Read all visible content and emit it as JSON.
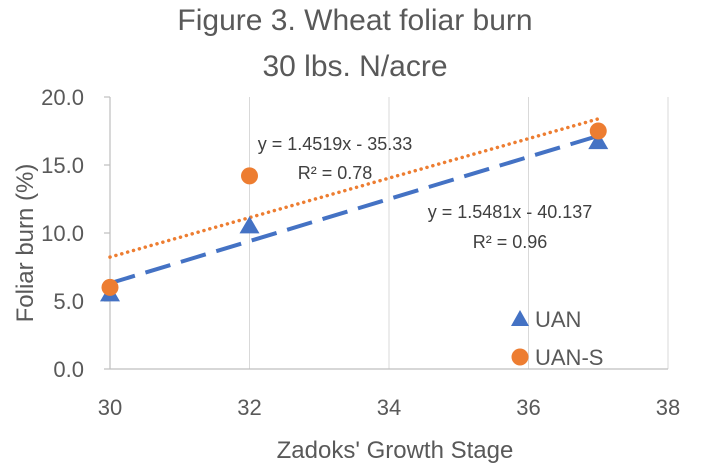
{
  "chart_data": {
    "type": "scatter",
    "title": [
      "Figure 3. Wheat foliar burn",
      "30 lbs. N/acre"
    ],
    "xlabel": "Zadoks' Growth Stage",
    "ylabel": "Foliar burn (%)",
    "xlim": [
      30,
      38
    ],
    "ylim": [
      0,
      20
    ],
    "x_ticks": [
      30,
      32,
      34,
      36,
      38
    ],
    "y_ticks": [
      0,
      5,
      10,
      15,
      20
    ],
    "x_tick_labels": [
      "30",
      "32",
      "34",
      "36",
      "38"
    ],
    "y_tick_labels": [
      "0.0",
      "5.0",
      "10.0",
      "15.0",
      "20.0"
    ],
    "grid": {
      "horizontal": false,
      "vertical": true
    },
    "legend_position": "bottom-right",
    "series": [
      {
        "name": "UAN",
        "marker": "triangle",
        "color": "#4472C4",
        "x": [
          30,
          32,
          37
        ],
        "y": [
          5.5,
          10.5,
          16.7
        ],
        "trendline": {
          "slope": 1.5481,
          "intercept": -40.137,
          "style": "dashed",
          "equation": "y = 1.5481x - 40.137",
          "r2": "R² = 0.96"
        }
      },
      {
        "name": "UAN-S",
        "marker": "circle",
        "color": "#ED7D31",
        "x": [
          30,
          32,
          37
        ],
        "y": [
          6.0,
          14.2,
          17.5
        ],
        "trendline": {
          "slope": 1.4519,
          "intercept": -35.33,
          "style": "dotted",
          "equation": "y = 1.4519x - 35.33",
          "r2": "R² = 0.78"
        }
      }
    ]
  }
}
